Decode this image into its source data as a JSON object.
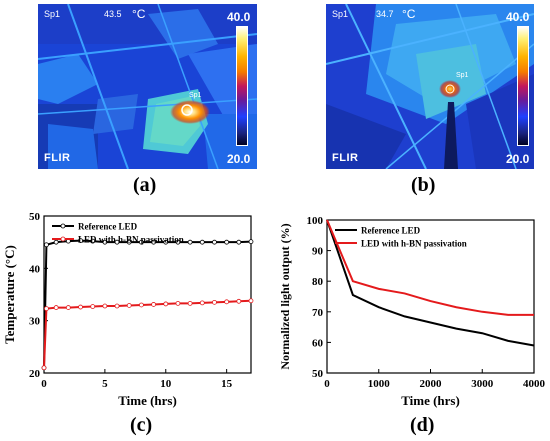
{
  "images": [
    {
      "id": "a",
      "spot_label": "Sp1",
      "spot_value": "43.5",
      "unit": "°C",
      "scale_max": "40.0",
      "scale_min": "20.0",
      "marker_label": "Sp1",
      "brand": "FLIR"
    },
    {
      "id": "b",
      "spot_label": "Sp1",
      "spot_value": "34.7",
      "unit": "°C",
      "scale_max": "40.0",
      "scale_min": "20.0",
      "marker_label": "Sp1",
      "brand": "FLIR"
    }
  ],
  "panel_labels": {
    "a": "(a)",
    "b": "(b)",
    "c": "(c)",
    "d": "(d)"
  },
  "chart_data": [
    {
      "type": "line",
      "panel": "c",
      "xlabel": "Time (hrs)",
      "ylabel": "Temperature (°C)",
      "xlim": [
        0,
        17
      ],
      "ylim": [
        20,
        50
      ],
      "xticks": [
        "0",
        "5",
        "10",
        "15"
      ],
      "yticks": [
        "20",
        "30",
        "40",
        "50"
      ],
      "legend_position": "top-left",
      "series": [
        {
          "name": "Reference LED",
          "color": "#000000",
          "x": [
            0,
            0.2,
            1,
            2,
            3,
            4,
            5,
            6,
            7,
            8,
            9,
            10,
            11,
            12,
            13,
            14,
            15,
            16,
            17
          ],
          "y": [
            21,
            44.5,
            45.0,
            45.2,
            45.3,
            45.2,
            45.0,
            45.0,
            45.0,
            45.0,
            45.0,
            45.0,
            45.0,
            45.0,
            45.0,
            45.0,
            45.0,
            45.0,
            45.1
          ]
        },
        {
          "name": "LED with h-BN passivation",
          "color": "#e41a1c",
          "x": [
            0,
            0.2,
            1,
            2,
            3,
            4,
            5,
            6,
            7,
            8,
            9,
            10,
            11,
            12,
            13,
            14,
            15,
            16,
            17
          ],
          "y": [
            21,
            32.3,
            32.5,
            32.5,
            32.6,
            32.7,
            32.8,
            32.8,
            32.9,
            33.0,
            33.1,
            33.2,
            33.3,
            33.3,
            33.4,
            33.5,
            33.6,
            33.7,
            33.8
          ]
        }
      ]
    },
    {
      "type": "line",
      "panel": "d",
      "xlabel": "Time (hrs)",
      "ylabel": "Normalized light output (%)",
      "xlim": [
        0,
        4000
      ],
      "ylim": [
        50,
        100
      ],
      "xticks": [
        "0",
        "1000",
        "2000",
        "3000",
        "4000"
      ],
      "yticks": [
        "50",
        "60",
        "70",
        "80",
        "90",
        "100"
      ],
      "legend_position": "top-left",
      "series": [
        {
          "name": "Reference LED",
          "color": "#000000",
          "x": [
            0,
            500,
            1000,
            1500,
            2000,
            2500,
            3000,
            3500,
            4000
          ],
          "y": [
            100,
            75.5,
            71.5,
            68.5,
            66.5,
            64.5,
            63,
            60.5,
            59
          ]
        },
        {
          "name": "LED with h-BN passivation",
          "color": "#e41a1c",
          "x": [
            0,
            500,
            1000,
            1500,
            2000,
            2500,
            3000,
            3500,
            4000
          ],
          "y": [
            100,
            80,
            77.5,
            76,
            73.5,
            71.5,
            70,
            69,
            69
          ]
        }
      ]
    }
  ]
}
